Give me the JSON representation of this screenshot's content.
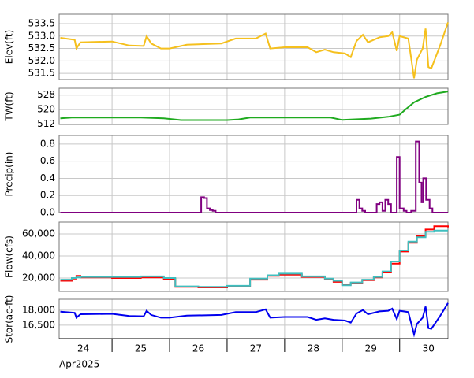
{
  "chart_data": [
    {
      "type": "line",
      "ylabel": "Elev(ft)",
      "color": "#f5c01e",
      "ylim": [
        531.25,
        533.88
      ],
      "xlim": [
        24.08,
        30.84
      ],
      "yticks": [
        {
          "value": 531.5,
          "label": "531.5"
        },
        {
          "value": 532,
          "label": "532.0"
        },
        532.5,
        {
          "value": 533,
          "label": "533.0"
        },
        533.5
      ],
      "xgrid": [
        25,
        26,
        27,
        28,
        29,
        30
      ],
      "x": [
        24.1,
        24.35,
        24.38,
        24.45,
        25.0,
        25.3,
        25.55,
        25.6,
        25.68,
        25.85,
        26.0,
        26.3,
        26.9,
        27.15,
        27.5,
        27.67,
        27.75,
        28.0,
        28.4,
        28.55,
        28.7,
        28.85,
        29.05,
        29.15,
        29.25,
        29.36,
        29.45,
        29.65,
        29.8,
        29.87,
        29.95,
        30.0,
        30.15,
        30.25,
        30.3,
        30.4,
        30.45,
        30.5,
        30.55,
        30.7,
        30.84
      ],
      "values": [
        532.93,
        532.85,
        532.5,
        532.75,
        532.78,
        532.62,
        532.6,
        533.0,
        532.7,
        532.5,
        532.5,
        532.65,
        532.7,
        532.9,
        532.9,
        533.1,
        532.5,
        532.55,
        532.55,
        532.35,
        532.45,
        532.35,
        532.3,
        532.15,
        532.8,
        533.05,
        532.75,
        532.95,
        533.0,
        533.15,
        532.4,
        533.0,
        532.9,
        531.3,
        532.05,
        532.5,
        533.3,
        531.75,
        531.7,
        532.6,
        533.55
      ]
    },
    {
      "type": "line",
      "ylabel": "TW(ft)",
      "color": "#1faa1f",
      "ylim": [
        511.8,
        531.8
      ],
      "xlim": [
        24.08,
        30.84
      ],
      "yticks": [
        512,
        520,
        528
      ],
      "xgrid": [
        25,
        26,
        27,
        28,
        29,
        30
      ],
      "x": [
        24.1,
        24.3,
        25.5,
        25.9,
        26.2,
        27.0,
        27.2,
        27.4,
        28.8,
        29.0,
        29.5,
        29.8,
        30.0,
        30.1,
        30.25,
        30.45,
        30.65,
        30.84
      ],
      "values": [
        515.2,
        515.6,
        515.6,
        515.2,
        514.2,
        514.2,
        514.6,
        515.6,
        515.6,
        514.3,
        515.0,
        516.0,
        517.2,
        520.0,
        524.0,
        527.0,
        529.0,
        530.0
      ]
    },
    {
      "type": "step",
      "ylabel": "Precip(in)",
      "color": "#800080",
      "ylim": [
        0,
        0.9
      ],
      "xlim": [
        24.08,
        30.84
      ],
      "yticks": [
        {
          "value": 0,
          "label": "0.0"
        },
        0.2,
        0.4,
        0.6,
        0.8
      ],
      "xgrid": [
        25,
        26,
        27,
        28,
        29,
        30
      ],
      "x": [
        24.1,
        26.55,
        26.6,
        26.65,
        26.7,
        26.75,
        26.8,
        29.25,
        29.3,
        29.35,
        29.4,
        29.6,
        29.65,
        29.7,
        29.75,
        29.8,
        29.85,
        29.95,
        30.0,
        30.07,
        30.12,
        30.2,
        30.28,
        30.34,
        30.38,
        30.41,
        30.46,
        30.52,
        30.57,
        30.84
      ],
      "values": [
        0,
        0.18,
        0.17,
        0.05,
        0.03,
        0.02,
        0,
        0.15,
        0.05,
        0.02,
        0,
        0.1,
        0.12,
        0.02,
        0.15,
        0.1,
        0,
        0.65,
        0.05,
        0.02,
        0,
        0.02,
        0.83,
        0.35,
        0.12,
        0.4,
        0.15,
        0.05,
        0,
        0
      ]
    },
    {
      "type": "step",
      "ylabel": "Flow(cfs)",
      "ylim": [
        7900,
        70700
      ],
      "xlim": [
        24.08,
        30.84
      ],
      "yticks": [
        {
          "value": 20000,
          "label": "20,000"
        },
        {
          "value": 40000,
          "label": "40,000"
        },
        {
          "value": 60000,
          "label": "60,000"
        }
      ],
      "xgrid": [
        25,
        26,
        27,
        28,
        29,
        30
      ],
      "x": [
        24.1,
        24.3,
        24.38,
        24.45,
        25.0,
        25.5,
        25.9,
        26.1,
        26.5,
        27.0,
        27.4,
        27.7,
        27.9,
        28.3,
        28.7,
        28.85,
        29.0,
        29.15,
        29.35,
        29.55,
        29.7,
        29.85,
        30.0,
        30.15,
        30.3,
        30.45,
        30.6,
        30.84
      ],
      "series": [
        {
          "color": "#ff0000",
          "values": [
            17500,
            19500,
            22000,
            20500,
            20000,
            20500,
            19000,
            12000,
            11500,
            12500,
            18500,
            22000,
            23000,
            21000,
            19000,
            16500,
            14000,
            15500,
            18000,
            20500,
            25000,
            33000,
            44000,
            52000,
            58000,
            64000,
            67000,
            66000
          ]
        },
        {
          "color": "#3fbfbf",
          "values": [
            18500,
            20000,
            20500,
            21000,
            21000,
            21500,
            20000,
            12500,
            12000,
            13000,
            19500,
            22500,
            24000,
            21500,
            19500,
            17500,
            13500,
            16000,
            18500,
            21000,
            26000,
            35000,
            45000,
            53000,
            57000,
            62000,
            63000,
            63000
          ]
        }
      ]
    },
    {
      "type": "line",
      "ylabel": "Stor(ac-ft)",
      "color": "#0000ee",
      "xlabel": "Apr2025",
      "ylim": [
        15150,
        19100
      ],
      "xlim": [
        24.08,
        30.84
      ],
      "yticks": [
        {
          "value": 16500,
          "label": "16,500"
        },
        {
          "value": 18000,
          "label": "18,000"
        }
      ],
      "xgrid": [
        25,
        26,
        27,
        28,
        29,
        30
      ],
      "xticks": [
        {
          "value": 24.5,
          "label": "24"
        },
        {
          "value": 25.5,
          "label": "25"
        },
        {
          "value": 26.5,
          "label": "26"
        },
        {
          "value": 27.5,
          "label": "27"
        },
        {
          "value": 28.5,
          "label": "28"
        },
        {
          "value": 29.5,
          "label": "29"
        },
        {
          "value": 30.5,
          "label": "30"
        }
      ],
      "x": [
        24.1,
        24.35,
        24.38,
        24.45,
        25.0,
        25.3,
        25.55,
        25.6,
        25.68,
        25.85,
        26.0,
        26.3,
        26.9,
        27.15,
        27.5,
        27.67,
        27.75,
        28.0,
        28.4,
        28.55,
        28.7,
        28.85,
        29.05,
        29.15,
        29.25,
        29.36,
        29.45,
        29.65,
        29.8,
        29.87,
        29.95,
        30.0,
        30.15,
        30.25,
        30.3,
        30.4,
        30.45,
        30.5,
        30.55,
        30.7,
        30.84
      ],
      "values": [
        17850,
        17740,
        17250,
        17600,
        17640,
        17420,
        17390,
        17950,
        17530,
        17250,
        17250,
        17460,
        17530,
        17810,
        17810,
        18090,
        17250,
        17320,
        17320,
        17040,
        17180,
        17040,
        16970,
        16760,
        17670,
        18020,
        17600,
        17880,
        17950,
        18160,
        17110,
        17950,
        17810,
        15570,
        16620,
        17250,
        18370,
        16200,
        16130,
        17390,
        18720
      ]
    }
  ]
}
